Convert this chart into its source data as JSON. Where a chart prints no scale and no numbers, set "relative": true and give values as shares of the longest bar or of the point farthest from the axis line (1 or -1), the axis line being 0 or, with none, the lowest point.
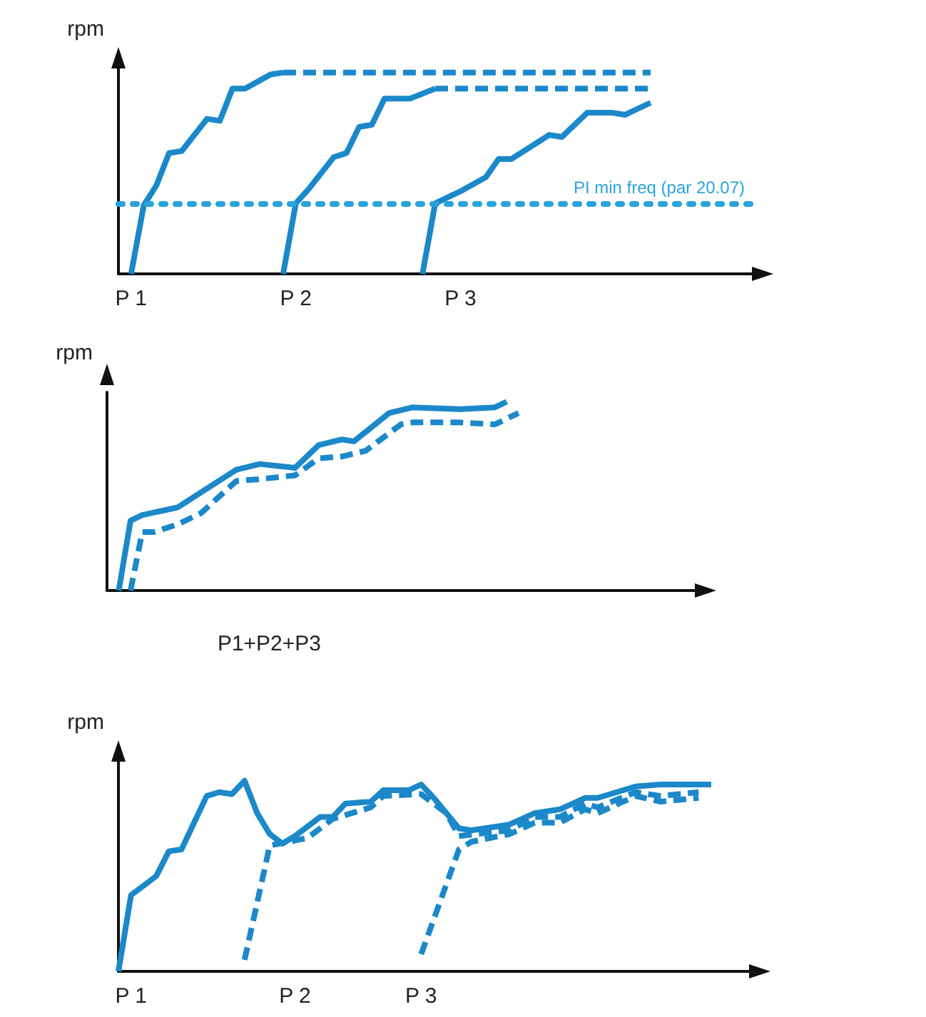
{
  "chart_data": [
    {
      "type": "line",
      "ylabel": "rpm",
      "relative": true,
      "tick_labels": "x",
      "grid": false,
      "marker": "none",
      "categories": [
        null,
        "P 1",
        null,
        null,
        null,
        null,
        null,
        null,
        null,
        null,
        null,
        null,
        null,
        null,
        "P 2",
        null,
        null,
        null,
        null,
        null,
        null,
        null,
        null,
        null,
        null,
        null,
        null,
        "P 3",
        null,
        null,
        null,
        null,
        null,
        null,
        null,
        null,
        null,
        null,
        null,
        null,
        null,
        null,
        null,
        null,
        null,
        null,
        null,
        null,
        null,
        null,
        null
      ],
      "series": [
        {
          "color": "#1b88c9",
          "line_style": "solid",
          "values": [
            null,
            0,
            0.34,
            0.44,
            0.6,
            0.61,
            null,
            0.77,
            0.76,
            0.92,
            0.92,
            null,
            0.99,
            1,
            null,
            null,
            null,
            null,
            null,
            null,
            null,
            null,
            null,
            null,
            null,
            null,
            null,
            null,
            null,
            null,
            null,
            null,
            null,
            null,
            null,
            null,
            null,
            null,
            null,
            null,
            null,
            null,
            null,
            null,
            null,
            null,
            null,
            null,
            null,
            null,
            null
          ]
        },
        {
          "color": "#1b88c9",
          "line_style": "dashed",
          "values": [
            null,
            null,
            null,
            null,
            null,
            null,
            null,
            null,
            null,
            null,
            null,
            null,
            null,
            1,
            null,
            null,
            null,
            null,
            null,
            null,
            null,
            null,
            null,
            null,
            null,
            null,
            null,
            null,
            null,
            null,
            null,
            null,
            null,
            null,
            null,
            null,
            null,
            null,
            null,
            null,
            null,
            null,
            1,
            null,
            null,
            null,
            null,
            null,
            null,
            null,
            null
          ]
        },
        {
          "color": "#1b88c9",
          "line_style": "solid",
          "values": [
            null,
            null,
            null,
            null,
            null,
            null,
            null,
            null,
            null,
            null,
            null,
            null,
            null,
            0,
            0.35,
            0.42,
            null,
            0.58,
            0.6,
            0.73,
            0.74,
            0.87,
            null,
            0.87,
            null,
            0.92,
            null,
            null,
            null,
            null,
            null,
            null,
            null,
            null,
            null,
            null,
            null,
            null,
            null,
            null,
            null,
            null,
            null,
            null,
            null,
            null,
            null,
            null,
            null,
            null,
            null
          ]
        },
        {
          "color": "#1b88c9",
          "line_style": "dashed",
          "values": [
            null,
            null,
            null,
            null,
            null,
            null,
            null,
            null,
            null,
            null,
            null,
            null,
            null,
            null,
            null,
            null,
            null,
            null,
            null,
            null,
            null,
            null,
            null,
            null,
            null,
            0.92,
            null,
            null,
            null,
            null,
            null,
            null,
            null,
            null,
            null,
            null,
            null,
            null,
            null,
            null,
            null,
            null,
            0.92,
            null,
            null,
            null,
            null,
            null,
            null,
            null,
            null
          ]
        },
        {
          "color": "#1b88c9",
          "line_style": "solid",
          "values": [
            null,
            null,
            null,
            null,
            null,
            null,
            null,
            null,
            null,
            null,
            null,
            null,
            null,
            null,
            null,
            null,
            null,
            null,
            null,
            null,
            null,
            null,
            null,
            null,
            0,
            0.35,
            null,
            0.41,
            null,
            0.48,
            0.57,
            0.57,
            null,
            null,
            0.69,
            0.68,
            null,
            0.8,
            null,
            0.8,
            0.79,
            null,
            0.85,
            null,
            null,
            null,
            null,
            null,
            null,
            null,
            null
          ]
        }
      ],
      "ref_lines": [
        {
          "axis": "y",
          "value": 0.35,
          "label": "PI min freq (par 20.07)",
          "color": "#29a3dc",
          "line_style": "dotted"
        }
      ]
    },
    {
      "type": "line",
      "ylabel": "rpm",
      "relative": true,
      "tick_labels": "x",
      "grid": false,
      "marker": "none",
      "xlabel": "P1+P2+P3",
      "categories": [
        null,
        null,
        null,
        null,
        null,
        null,
        null,
        null,
        null,
        null,
        null,
        null,
        null,
        null,
        null,
        null,
        null,
        null,
        null,
        null,
        null,
        null,
        null,
        null,
        null,
        null,
        null,
        null,
        null,
        null,
        null,
        null,
        null,
        null,
        null,
        null,
        null,
        null,
        null,
        null,
        null,
        null,
        null,
        null,
        null,
        null,
        null,
        null,
        null,
        null,
        null
      ],
      "series": [
        {
          "color": "#1b88c9",
          "line_style": "solid",
          "values": [
            null,
            0,
            0.37,
            0.4,
            null,
            null,
            0.44,
            null,
            0.52,
            null,
            null,
            0.64,
            null,
            0.67,
            null,
            null,
            0.65,
            null,
            0.77,
            null,
            0.8,
            0.79,
            null,
            null,
            0.94,
            null,
            0.97,
            null,
            null,
            null,
            0.96,
            null,
            null,
            0.97,
            1,
            null,
            null,
            null,
            null,
            null,
            null,
            null,
            null,
            null,
            null,
            null,
            null,
            null,
            null,
            null,
            null
          ]
        },
        {
          "color": "#1b88c9",
          "line_style": "dashed",
          "values": [
            null,
            null,
            0,
            0.31,
            0.31,
            null,
            0.35,
            null,
            0.41,
            null,
            null,
            0.58,
            null,
            0.59,
            null,
            null,
            0.61,
            null,
            0.7,
            null,
            0.71,
            null,
            0.74,
            null,
            null,
            0.88,
            0.89,
            null,
            null,
            null,
            0.89,
            null,
            null,
            0.88,
            null,
            0.94,
            null,
            null,
            null,
            null,
            null,
            null,
            null,
            null,
            null,
            null,
            null,
            null,
            null,
            null,
            null
          ]
        }
      ]
    },
    {
      "type": "line",
      "ylabel": "rpm",
      "relative": true,
      "tick_labels": "x",
      "grid": false,
      "marker": "none",
      "categories": [
        null,
        "P 1",
        null,
        null,
        null,
        null,
        null,
        null,
        null,
        null,
        null,
        null,
        null,
        null,
        "P 2",
        null,
        null,
        null,
        null,
        null,
        null,
        null,
        null,
        null,
        "P 3",
        null,
        null,
        null,
        null,
        null,
        null,
        null,
        null,
        null,
        null,
        null,
        null,
        null,
        null,
        null,
        null,
        null,
        null,
        null,
        null,
        null,
        null,
        null,
        null,
        null,
        null
      ],
      "series": [
        {
          "color": "#1b88c9",
          "line_style": "solid",
          "values": [
            0,
            0.4,
            null,
            0.5,
            0.63,
            0.64,
            0.78,
            0.92,
            0.94,
            0.93,
            1,
            0.83,
            0.72,
            0.67,
            0.71,
            null,
            0.81,
            0.81,
            0.88,
            null,
            0.89,
            0.95,
            null,
            0.95,
            0.98,
            0.91,
            null,
            0.75,
            0.74,
            null,
            null,
            0.77,
            null,
            0.83,
            null,
            0.85,
            null,
            0.91,
            0.91,
            null,
            null,
            0.97,
            null,
            0.98,
            null,
            null,
            null,
            0.98,
            null,
            null,
            null
          ]
        },
        {
          "color": "#1b88c9",
          "line_style": "dashed",
          "values": [
            null,
            null,
            null,
            null,
            null,
            null,
            null,
            null,
            null,
            null,
            0.06,
            null,
            0.66,
            null,
            null,
            0.7,
            null,
            0.8,
            null,
            null,
            0.86,
            0.92,
            null,
            null,
            0.93,
            null,
            0.83,
            0.71,
            null,
            null,
            null,
            0.74,
            null,
            0.81,
            null,
            0.81,
            null,
            0.88,
            0.86,
            null,
            null,
            0.94,
            null,
            0.92,
            null,
            null,
            0.94,
            null,
            null,
            null,
            null
          ]
        },
        {
          "color": "#1b88c9",
          "line_style": "dashed",
          "values": [
            null,
            null,
            null,
            null,
            null,
            null,
            null,
            null,
            null,
            null,
            null,
            null,
            null,
            null,
            null,
            null,
            null,
            null,
            null,
            null,
            null,
            null,
            null,
            null,
            0.09,
            null,
            null,
            0.64,
            0.68,
            null,
            null,
            0.72,
            null,
            0.78,
            null,
            0.78,
            null,
            0.85,
            0.83,
            null,
            null,
            0.92,
            null,
            0.89,
            null,
            null,
            0.91,
            null,
            null,
            null,
            null
          ]
        }
      ]
    }
  ]
}
